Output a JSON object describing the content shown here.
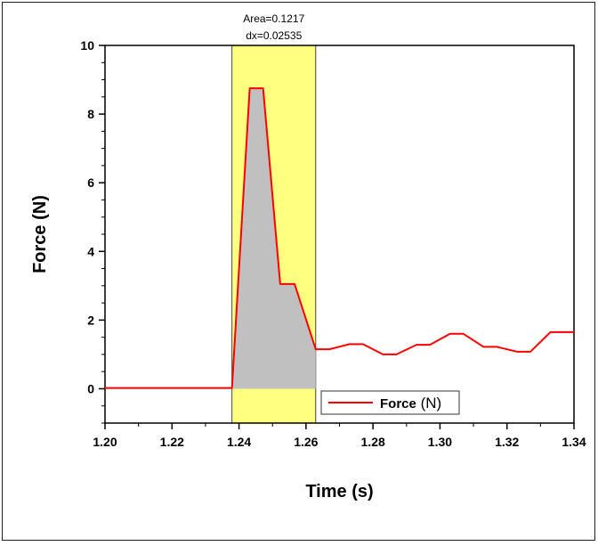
{
  "chart_data": {
    "type": "line",
    "title": "",
    "xlabel": "Time (s)",
    "ylabel": "Force (N)",
    "xlim": [
      1.2,
      1.34
    ],
    "ylim": [
      -1,
      10
    ],
    "x_ticks": [
      "1.20",
      "1.22",
      "1.24",
      "1.26",
      "1.28",
      "1.30",
      "1.32",
      "1.34"
    ],
    "x_tick_values": [
      1.2,
      1.22,
      1.24,
      1.26,
      1.28,
      1.3,
      1.32,
      1.34
    ],
    "y_ticks": [
      "0",
      "2",
      "4",
      "6",
      "8",
      "10"
    ],
    "y_tick_values": [
      0,
      2,
      4,
      6,
      8,
      10
    ],
    "grid": false,
    "legend": {
      "position": "bottom-right",
      "entries": [
        {
          "name_bold": "Force",
          "name_unit": " (N)"
        }
      ]
    },
    "series": [
      {
        "name": "Force (N)",
        "color": "#ff0000",
        "x": [
          1.2,
          1.2379,
          1.2432,
          1.2472,
          1.2523,
          1.2566,
          1.2629,
          1.267,
          1.273,
          1.277,
          1.283,
          1.287,
          1.293,
          1.297,
          1.303,
          1.307,
          1.313,
          1.317,
          1.323,
          1.327,
          1.333,
          1.34
        ],
        "y": [
          0.02,
          0.02,
          8.75,
          8.75,
          3.05,
          3.05,
          1.15,
          1.15,
          1.3,
          1.3,
          1.0,
          1.0,
          1.28,
          1.28,
          1.6,
          1.6,
          1.22,
          1.22,
          1.08,
          1.08,
          1.65,
          1.65
        ]
      }
    ],
    "highlight_region": {
      "x_start": 1.2379,
      "x_end": 1.2629,
      "color": "#ffff80"
    },
    "integrated_area_color": "#c0c0c0",
    "annotations": {
      "area_label": "Area=0.1217",
      "dx_label": "dx=0.02535"
    }
  }
}
